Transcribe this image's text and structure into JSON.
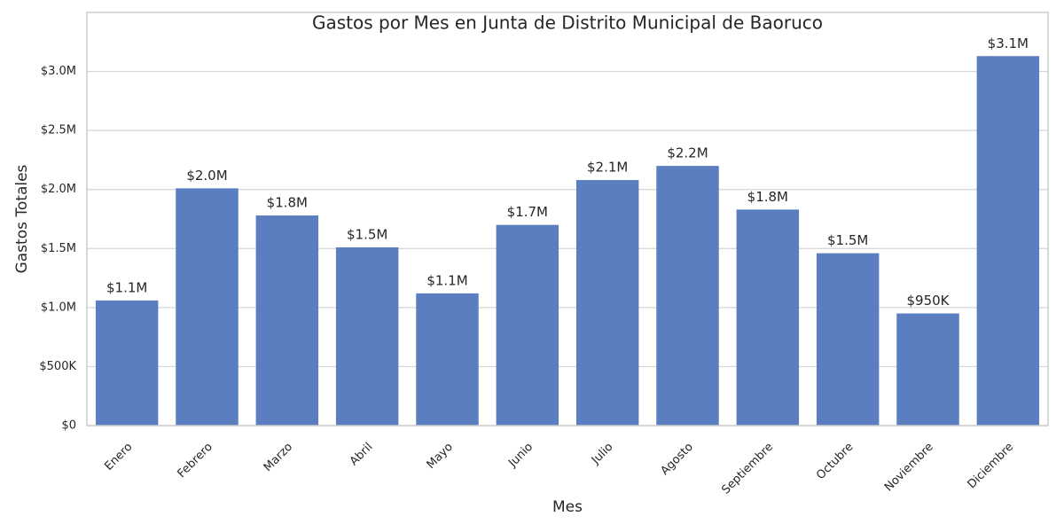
{
  "chart_data": {
    "type": "bar",
    "title": "Gastos por Mes en Junta de Distrito Municipal de Baoruco",
    "x_label": "Mes",
    "y_label": "Gastos Totales",
    "categories": [
      "Enero",
      "Febrero",
      "Marzo",
      "Abril",
      "Mayo",
      "Junio",
      "Julio",
      "Agosto",
      "Septiembre",
      "Octubre",
      "Noviembre",
      "Diciembre"
    ],
    "values": [
      1060000,
      2010000,
      1780000,
      1510000,
      1120000,
      1700000,
      2080000,
      2200000,
      1830000,
      1460000,
      950000,
      3130000
    ],
    "value_labels": [
      "$1.1M",
      "$2.0M",
      "$1.8M",
      "$1.5M",
      "$1.1M",
      "$1.7M",
      "$2.1M",
      "$2.2M",
      "$1.8M",
      "$1.5M",
      "$950K",
      "$3.1M"
    ],
    "color": "#5b7ec1",
    "ylim": [
      0,
      3500000
    ],
    "yticks": [
      {
        "value": 0,
        "label": "$0"
      },
      {
        "value": 500000,
        "label": "$500K"
      },
      {
        "value": 1000000,
        "label": "$1.0M"
      },
      {
        "value": 1500000,
        "label": "$1.5M"
      },
      {
        "value": 2000000,
        "label": "$2.0M"
      },
      {
        "value": 2500000,
        "label": "$2.5M"
      },
      {
        "value": 3000000,
        "label": "$3.0M"
      }
    ],
    "grid": true
  }
}
